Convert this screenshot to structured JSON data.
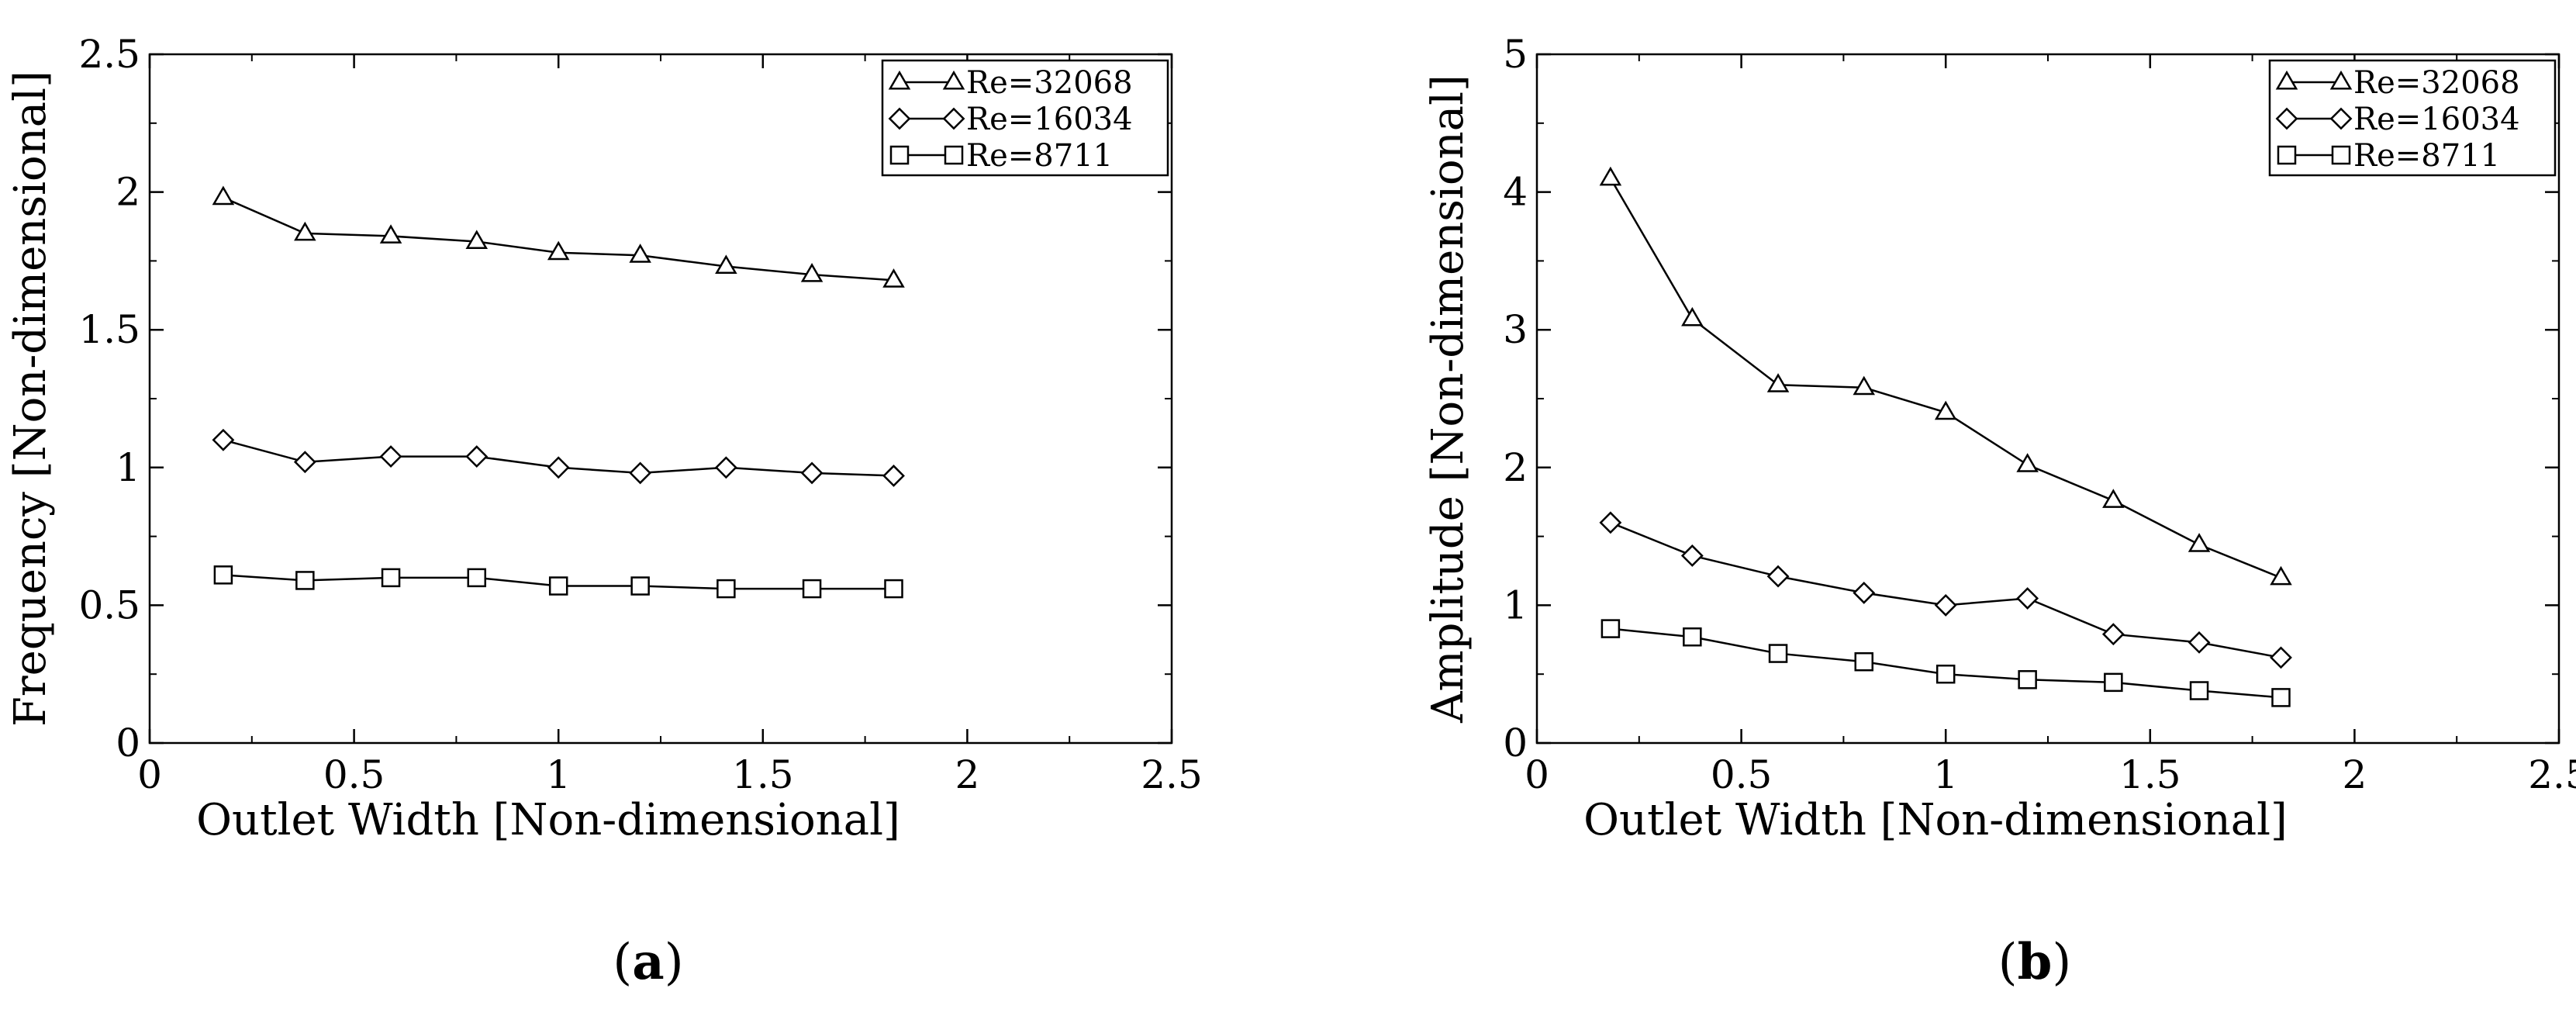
{
  "chart_data": [
    {
      "type": "line",
      "title": "",
      "caption": {
        "open": "(",
        "letter": "a",
        "close": ")"
      },
      "xlabel": "Outlet Width [Non-dimensional]",
      "ylabel": "Frequency [Non-dimensional]",
      "xlim": [
        0,
        2.5
      ],
      "ylim": [
        0,
        2.5
      ],
      "xticks": [
        0,
        0.5,
        1,
        1.5,
        2,
        2.5
      ],
      "xtick_labels": [
        "0",
        "0.5",
        "1",
        "1.5",
        "2",
        "2.5"
      ],
      "yticks": [
        0,
        0.5,
        1,
        1.5,
        2,
        2.5
      ],
      "ytick_labels": [
        "0",
        "0.5",
        "1",
        "1.5",
        "2",
        "2.5"
      ],
      "grid": false,
      "legend_position": "top-right",
      "x": [
        0.18,
        0.38,
        0.59,
        0.8,
        1.0,
        1.2,
        1.41,
        1.62,
        1.82
      ],
      "series": [
        {
          "name": "Re=32068",
          "marker": "triangle",
          "values": [
            1.98,
            1.85,
            1.84,
            1.82,
            1.78,
            1.77,
            1.73,
            1.7,
            1.68
          ]
        },
        {
          "name": "Re=16034",
          "marker": "diamond",
          "values": [
            1.1,
            1.02,
            1.04,
            1.04,
            1.0,
            0.98,
            1.0,
            0.98,
            0.97
          ]
        },
        {
          "name": "Re=8711",
          "marker": "square",
          "values": [
            0.61,
            0.59,
            0.6,
            0.6,
            0.57,
            0.57,
            0.56,
            0.56,
            0.56
          ]
        }
      ]
    },
    {
      "type": "line",
      "title": "",
      "caption": {
        "open": "(",
        "letter": "b",
        "close": ")"
      },
      "xlabel": "Outlet Width [Non-dimensional]",
      "ylabel": "Amplitude [Non-dimensional]",
      "xlim": [
        0,
        2.5
      ],
      "ylim": [
        0,
        5
      ],
      "xticks": [
        0,
        0.5,
        1,
        1.5,
        2,
        2.5
      ],
      "xtick_labels": [
        "0",
        "0.5",
        "1",
        "1.5",
        "2",
        "2.5"
      ],
      "yticks": [
        0,
        1,
        2,
        3,
        4,
        5
      ],
      "ytick_labels": [
        "0",
        "1",
        "2",
        "3",
        "4",
        "5"
      ],
      "grid": false,
      "legend_position": "top-right",
      "x": [
        0.18,
        0.38,
        0.59,
        0.8,
        1.0,
        1.2,
        1.41,
        1.62,
        1.82
      ],
      "series": [
        {
          "name": "Re=32068",
          "marker": "triangle",
          "values": [
            4.1,
            3.08,
            2.6,
            2.58,
            2.4,
            2.02,
            1.76,
            1.44,
            1.2
          ]
        },
        {
          "name": "Re=16034",
          "marker": "diamond",
          "values": [
            1.6,
            1.36,
            1.21,
            1.09,
            1.0,
            1.05,
            0.79,
            0.73,
            0.62
          ]
        },
        {
          "name": "Re=8711",
          "marker": "square",
          "values": [
            0.83,
            0.77,
            0.65,
            0.59,
            0.5,
            0.46,
            0.44,
            0.38,
            0.33
          ]
        }
      ]
    }
  ]
}
